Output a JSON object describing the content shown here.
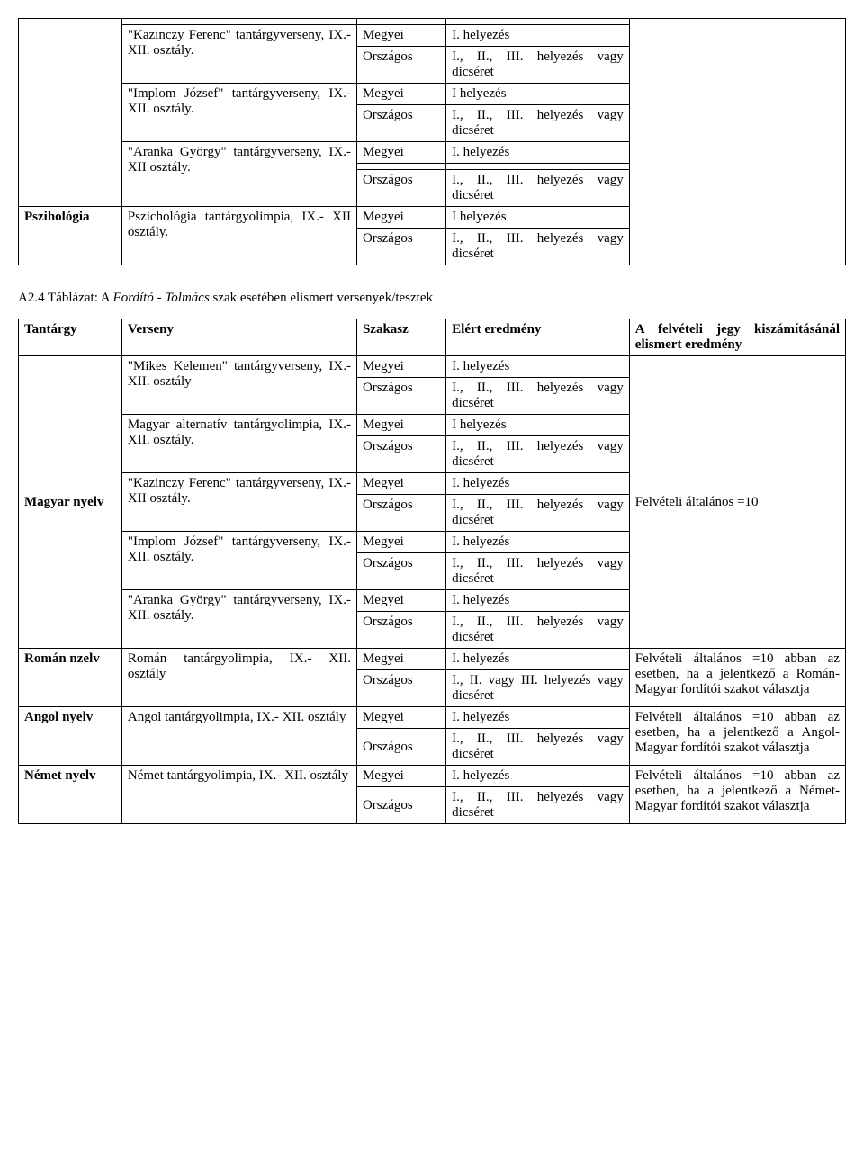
{
  "table1": {
    "rows": [
      {
        "subject": "",
        "comp": "",
        "stage": "",
        "result": "",
        "grade": ""
      },
      {
        "subject": "",
        "comp_html": "\"Kazinczy Ferenc\" tantárgyverseny,\nIX.- XII. osztály.",
        "stage": "Megyei",
        "result": "I. helyezés",
        "grade": ""
      },
      {
        "subject": "",
        "comp": "",
        "stage": "Országos",
        "result": "I., II., III. helyezés vagy dicséret",
        "grade": ""
      },
      {
        "subject": "",
        "comp_html": "\"Implom József\" tantárgyverseny,\nIX.- XII. osztály.",
        "stage": "Megyei",
        "result": "I helyezés",
        "grade": ""
      },
      {
        "subject": "",
        "comp": "",
        "stage": "Országos",
        "result": "I., II., III. helyezés vagy dicséret",
        "grade": ""
      },
      {
        "subject": "",
        "comp_html": "\"Aranka György\" tantárgyverseny, IX.- XII osztály.",
        "stage": "Megyei",
        "result": "I. helyezés",
        "grade": ""
      },
      {
        "subject": "",
        "comp": "",
        "stage": "",
        "result": "",
        "grade": ""
      },
      {
        "subject": "",
        "comp": "",
        "stage": "Országos",
        "result": "I., II., III. helyezés vagy dicséret",
        "grade": ""
      },
      {
        "subject": "Pszihológia",
        "comp": "Pszichológia tantárgyolimpia, IX.- XII osztály.",
        "stage": "Megyei",
        "result": "I helyezés",
        "grade": ""
      },
      {
        "subject": "",
        "comp": "",
        "stage": "Országos",
        "result": "I., II., III. helyezés vagy dicséret",
        "grade": ""
      }
    ]
  },
  "caption": {
    "prefix": "A2.4 Táblázat: A ",
    "italic": "Fordító - Tolmács",
    "suffix": " szak esetében elismert versenyek/tesztek"
  },
  "table2": {
    "header": {
      "subject": "Tantárgy",
      "comp": "Verseny",
      "stage": "Szakasz",
      "result": "Elért eredmény",
      "grade": "A felvételi jegy kiszámításánál elismert eredmény"
    },
    "rows": [
      {
        "subject": "Magyar nyelv",
        "comp": "\"Mikes Kelemen\" tantárgyverseny,\nIX.- XII. osztály",
        "stage": "Megyei",
        "result": "I. helyezés",
        "grade": "Felvételi általános =10"
      },
      {
        "subject": "",
        "comp": "",
        "stage": "Országos",
        "result": "I., II., III. helyezés vagy dicséret",
        "grade": ""
      },
      {
        "subject": "",
        "comp": "Magyar alternatív tantárgyolimpia, IX.- XII. osztály.",
        "stage": "Megyei",
        "result": "I helyezés",
        "grade": ""
      },
      {
        "subject": "",
        "comp": "",
        "stage": "Országos",
        "result": "I., II., III. helyezés vagy dicséret",
        "grade": ""
      },
      {
        "subject": "",
        "comp": "\"Kazinczy Ferenc\" tantárgyverseny,\nIX.- XII osztály.",
        "stage": "Megyei",
        "result": "I. helyezés",
        "grade": ""
      },
      {
        "subject": "",
        "comp": "",
        "stage": "Országos",
        "result": "I., II., III. helyezés vagy dicséret",
        "grade": ""
      },
      {
        "subject": "",
        "comp": "\"Implom József\" tantárgyverseny,\nIX.- XII. osztály.",
        "stage": "Megyei",
        "result": "I. helyezés",
        "grade": ""
      },
      {
        "subject": "",
        "comp": "",
        "stage": "Országos",
        "result": "I., II., III. helyezés vagy dicséret",
        "grade": ""
      },
      {
        "subject": "",
        "comp": "\"Aranka György\" tantárgyverseny, IX.- XII. osztály.",
        "stage": "Megyei",
        "result": "I. helyezés",
        "grade": ""
      },
      {
        "subject": "",
        "comp": "",
        "stage": "Országos",
        "result": "I., II., III. helyezés vagy dicséret",
        "grade": ""
      },
      {
        "subject": "Román nzelv",
        "comp": "Román tantárgyolimpia, IX.- XII. osztály",
        "stage": "Megyei",
        "result": "I. helyezés",
        "grade": "Felvételi általános =10 abban az esetben, ha a jelentkező a Román-Magyar fordítói szakot választja"
      },
      {
        "subject": "",
        "comp": "",
        "stage": "Országos",
        "result": "I., II. vagy III. helyezés vagy dicséret",
        "grade": ""
      },
      {
        "subject": "Angol nyelv",
        "comp": "Angol tantárgyolimpia, IX.- XII. osztály",
        "stage": "Megyei",
        "result": "I. helyezés",
        "grade": "Felvételi általános =10 abban az esetben, ha a jelentkező a Angol-Magyar fordítói szakot választja"
      },
      {
        "subject": "",
        "comp": "",
        "stage": "Országos",
        "result": "I., II., III. helyezés vagy dicséret",
        "grade": ""
      },
      {
        "subject": "Német nyelv",
        "comp": "Német tantárgyolimpia, IX.- XII. osztály",
        "stage": "Megyei",
        "result": "I. helyezés",
        "grade": "Felvételi általános =10 abban az esetben, ha a jelentkező a Német-Magyar fordítói szakot választja"
      },
      {
        "subject": "",
        "comp": "",
        "stage": "Országos",
        "result": "I., II., III. helyezés vagy dicséret",
        "grade": ""
      }
    ]
  }
}
